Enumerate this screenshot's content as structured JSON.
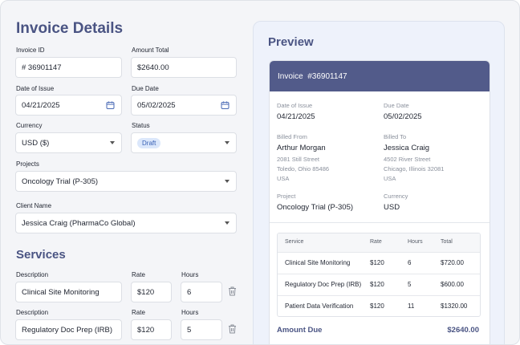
{
  "invoice_form": {
    "title": "Invoice Details",
    "invoice_id": {
      "label": "Invoice ID",
      "value": "# 36901147"
    },
    "amount_total": {
      "label": "Amount Total",
      "value": "$2640.00"
    },
    "date_of_issue": {
      "label": "Date of Issue",
      "value": "04/21/2025"
    },
    "due_date": {
      "label": "Due Date",
      "value": "05/02/2025"
    },
    "currency": {
      "label": "Currency",
      "value": "USD ($)"
    },
    "status": {
      "label": "Status",
      "value": "Draft"
    },
    "projects": {
      "label": "Projects",
      "value": "Oncology Trial (P-305)"
    },
    "client_name": {
      "label": "Client Name",
      "value": "Jessica Craig (PharmaCo Global)"
    }
  },
  "services": {
    "title": "Services",
    "items": [
      {
        "description_label": "Description",
        "description": "Clinical Site Monitoring",
        "rate_label": "Rate",
        "rate": "$120",
        "hours_label": "Hours",
        "hours": 6
      },
      {
        "description_label": "Description",
        "description": "Regulatory Doc Prep (IRB)",
        "rate_label": "Rate",
        "rate": "$120",
        "hours_label": "Hours",
        "hours": 5
      }
    ]
  },
  "preview": {
    "title": "Preview",
    "invoice_label": "Invoice",
    "invoice_number": "#36901147",
    "date_of_issue": {
      "label": "Date of Issue",
      "value": "04/21/2025"
    },
    "due_date": {
      "label": "Due Date",
      "value": "05/02/2025"
    },
    "billed_from": {
      "label": "Billed From",
      "name": "Arthur Morgan",
      "address": [
        "2081 Still Street",
        "Toledo, Ohio 85486",
        "USA"
      ]
    },
    "billed_to": {
      "label": "Billed To",
      "name": "Jessica Craig",
      "address": [
        "4502 River Street",
        "Chicago, Illinois 32081",
        "USA"
      ]
    },
    "project": {
      "label": "Project",
      "value": "Oncology Trial (P-305)"
    },
    "currency": {
      "label": "Currency",
      "value": "USD"
    },
    "table": {
      "columns": [
        "Service",
        "Rate",
        "Hours",
        "Total"
      ],
      "rows": [
        [
          "Clinical Site Monitoring",
          "$120",
          6,
          "$720.00"
        ],
        [
          "Regulatory Doc Prep (IRB)",
          "$120",
          5,
          "$600.00"
        ],
        [
          "Patient Data Verification",
          "$120",
          11,
          "$1320.00"
        ]
      ]
    },
    "amount_due": {
      "label": "Amount Due",
      "value": "$2640.00"
    }
  }
}
